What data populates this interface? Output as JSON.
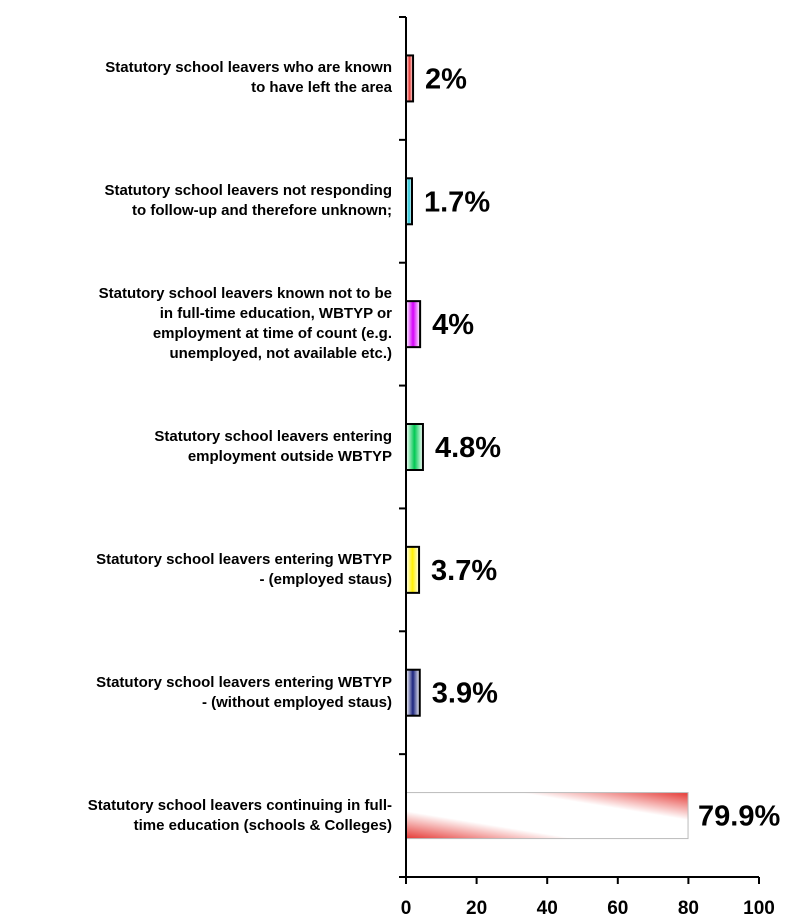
{
  "chart_data": {
    "type": "bar",
    "orientation": "horizontal",
    "categories": [
      "Statutory school leavers who are known\nto have left the area",
      "Statutory school leavers not responding\nto follow-up and therefore unknown;",
      "Statutory school leavers known not to be\nin full-time education, WBTYP or\nemployment at time of count (e.g.\nunemployed, not available etc.)",
      "Statutory school leavers entering\nemployment outside WBTYP",
      "Statutory school leavers entering WBTYP\n- (employed staus)",
      "Statutory school leavers entering WBTYP\n- (without employed staus)",
      "Statutory school leavers continuing in full-\ntime education (schools & Colleges)"
    ],
    "values": [
      2,
      1.7,
      4,
      4.8,
      3.7,
      3.9,
      79.9
    ],
    "data_labels": [
      "2%",
      "1.7%",
      "4%",
      "4.8%",
      "3.7%",
      "3.9%",
      "79.9%"
    ],
    "bar_colors": [
      "#e53935",
      "#26c6da",
      "#d500f9",
      "#00c853",
      "#ffee00",
      "#1a237e",
      "#e53935"
    ],
    "xlim": [
      0,
      100
    ],
    "x_ticks": [
      0,
      20,
      40,
      60,
      80,
      100
    ],
    "legend": "none",
    "grid": false
  }
}
